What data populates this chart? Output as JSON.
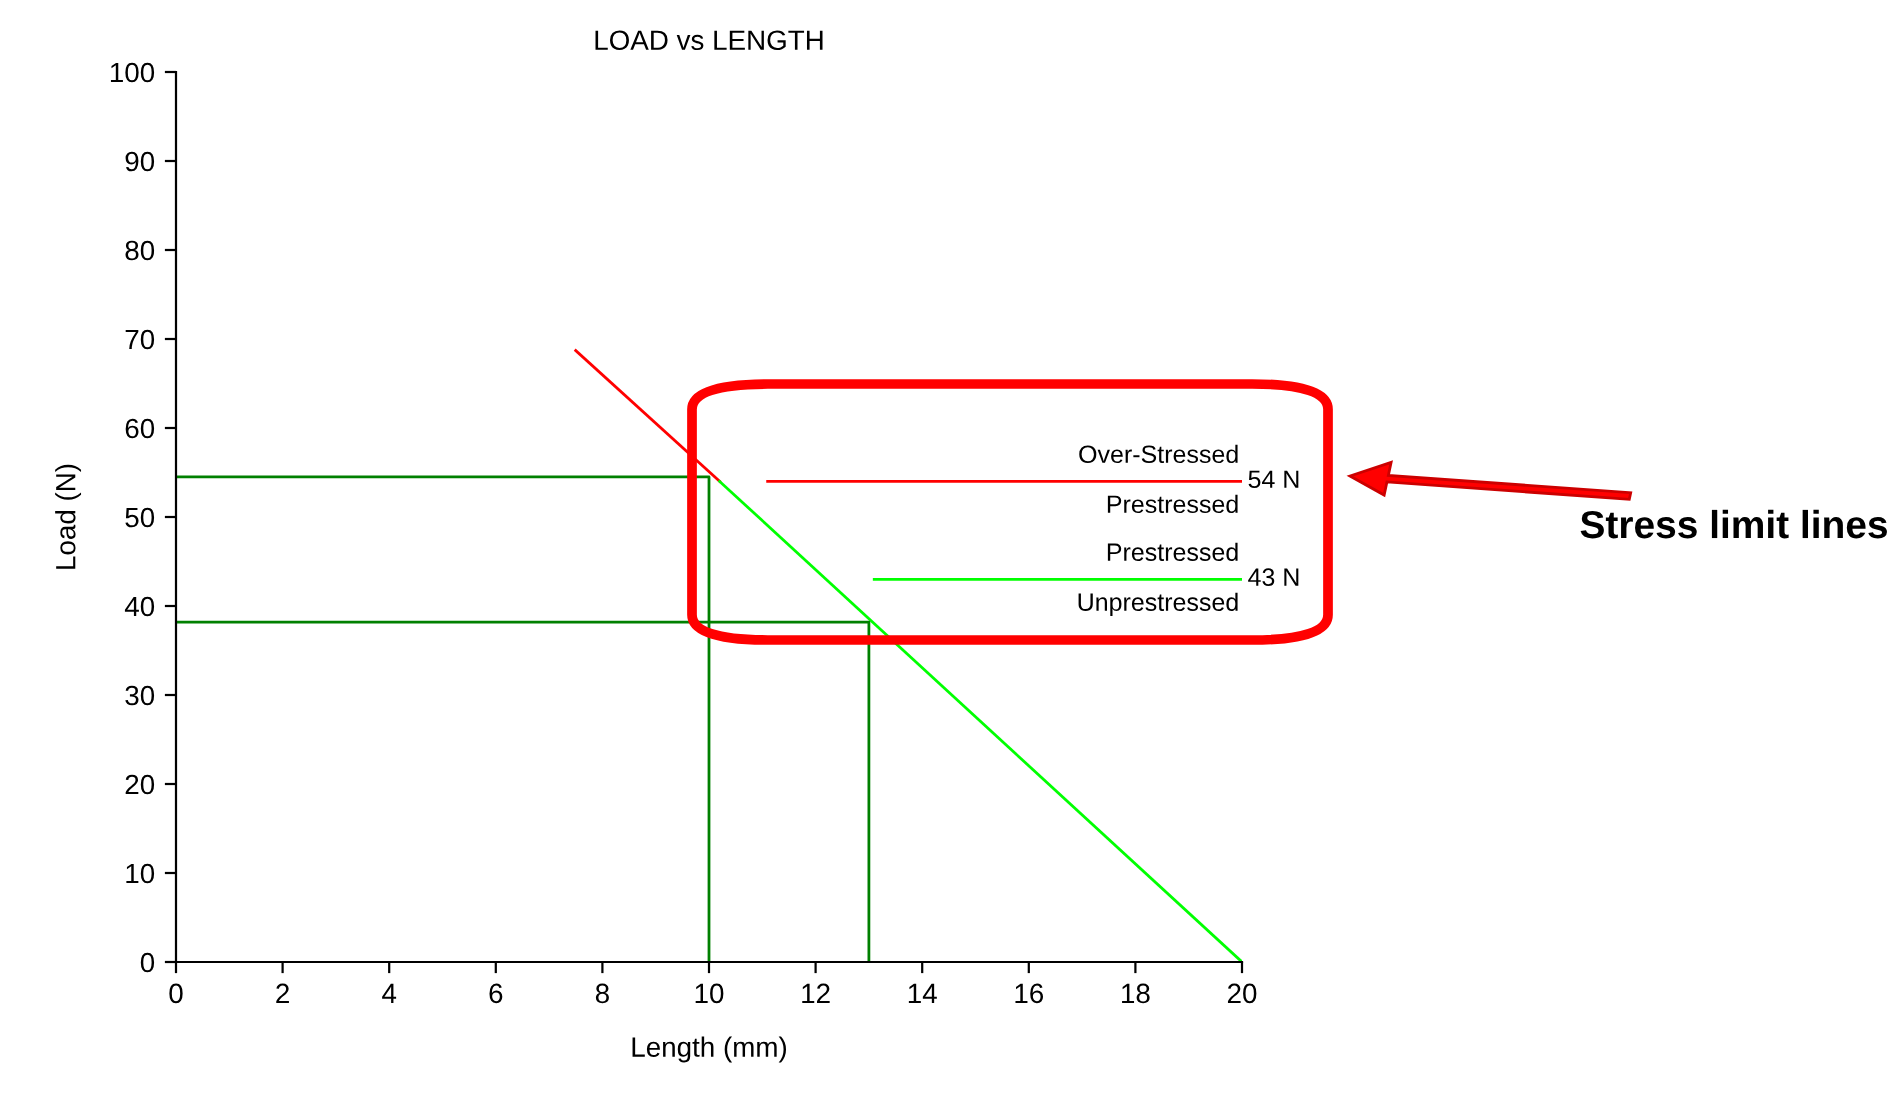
{
  "chart_data": {
    "type": "line",
    "title": "LOAD vs LENGTH",
    "xlabel": "Length (mm)",
    "ylabel": "Load (N)",
    "series": [
      {
        "color": "#ff0000",
        "x": [
          7.5,
          10.2
        ],
        "values": [
          68.7,
          54
        ]
      },
      {
        "color": "#00ff00",
        "x": [
          10.2,
          20
        ],
        "values": [
          54,
          0
        ]
      },
      {
        "color": "#008000",
        "x": [
          0,
          10,
          10
        ],
        "values": [
          54.5,
          54.5,
          0
        ]
      },
      {
        "color": "#008000",
        "x": [
          0,
          13,
          13
        ],
        "values": [
          38.2,
          38.2,
          0
        ]
      },
      {
        "color": "#ff0000",
        "x": [
          11.1,
          20
        ],
        "values": [
          54,
          54
        ]
      },
      {
        "color": "#00ff00",
        "x": [
          13.1,
          20
        ],
        "values": [
          43,
          43
        ]
      }
    ],
    "annotations": [
      {
        "text": "54 N",
        "x": 20,
        "y": 54
      },
      "Over-Stressed",
      "Prestressed",
      {
        "text": "43 N",
        "x": 20,
        "y": 43
      },
      "Prestressed",
      "Unprestressed",
      "Stress limit lines"
    ],
    "xlim": [
      0,
      20
    ],
    "ylim": [
      0,
      100
    ],
    "xticks": [
      0,
      2,
      4,
      6,
      8,
      10,
      12,
      14,
      16,
      18,
      20
    ],
    "yticks": [
      0,
      10,
      20,
      30,
      40,
      50,
      60,
      70,
      80,
      90,
      100
    ],
    "grid": false,
    "legend": false,
    "marker": "none",
    "line_style": "solid"
  }
}
